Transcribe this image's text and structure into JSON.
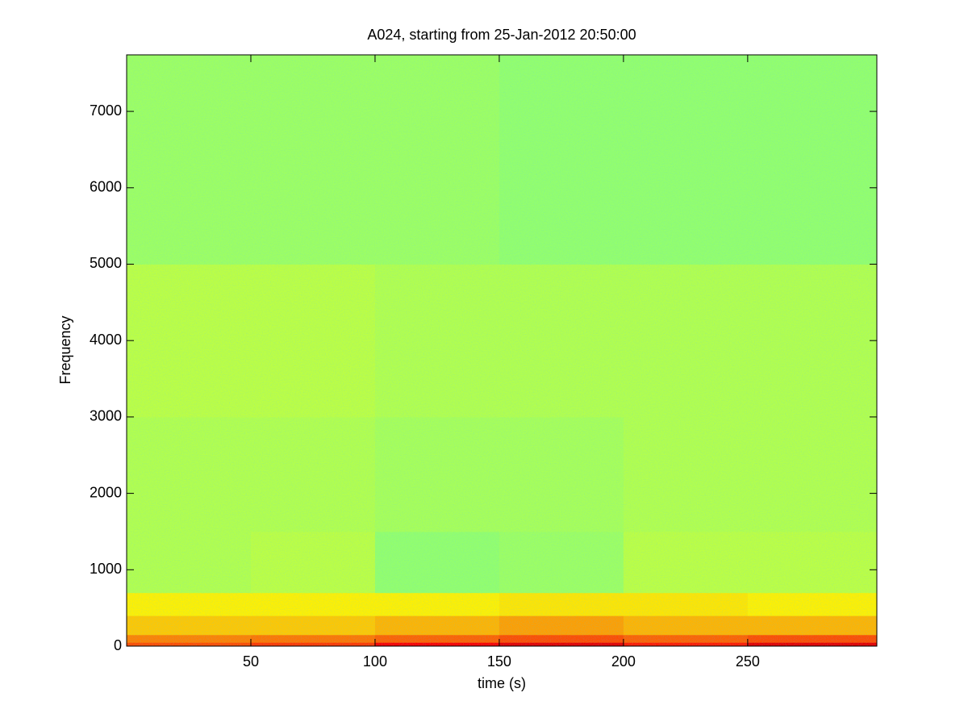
{
  "chart_data": {
    "type": "heatmap",
    "title": "A024, starting from 25-Jan-2012 20:50:00",
    "x_label": "time (s)",
    "y_label": "Frequency",
    "xlim": [
      0,
      302
    ],
    "ylim": [
      0,
      7740
    ],
    "xticks": [
      50,
      100,
      150,
      200,
      250
    ],
    "yticks": [
      0,
      1000,
      2000,
      3000,
      4000,
      5000,
      6000,
      7000
    ],
    "x_edges": [
      0,
      50,
      100,
      150,
      200,
      250,
      302
    ],
    "y_edges": [
      0,
      50,
      150,
      400,
      700,
      1500,
      3000,
      5000,
      7740
    ],
    "z": [
      [
        0.8,
        0.82,
        0.88,
        0.9,
        0.85,
        0.9
      ],
      [
        0.75,
        0.76,
        0.78,
        0.8,
        0.78,
        0.8
      ],
      [
        0.68,
        0.68,
        0.7,
        0.72,
        0.7,
        0.7
      ],
      [
        0.64,
        0.64,
        0.64,
        0.65,
        0.65,
        0.64
      ],
      [
        0.55,
        0.56,
        0.52,
        0.53,
        0.56,
        0.56
      ],
      [
        0.55,
        0.55,
        0.54,
        0.54,
        0.55,
        0.55
      ],
      [
        0.56,
        0.56,
        0.55,
        0.55,
        0.55,
        0.55
      ],
      [
        0.53,
        0.53,
        0.53,
        0.52,
        0.52,
        0.52
      ]
    ],
    "colormap": "jet"
  }
}
